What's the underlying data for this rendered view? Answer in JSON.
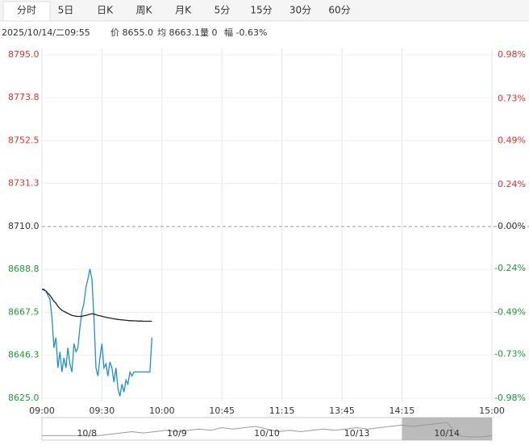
{
  "tabs": [
    "分时",
    "5日",
    "日K",
    "周K",
    "月K",
    "5分",
    "15分",
    "30分",
    "60分"
  ],
  "info": [
    "2025/10/14/二09:55",
    "价 8655.0",
    "均 8663.1",
    "量 0",
    "幅 -0.63%"
  ],
  "chart_data": {
    "type": "line",
    "x": [
      0,
      1,
      2,
      3,
      4,
      5,
      6,
      7,
      8,
      9,
      10,
      11,
      12,
      13,
      14,
      15,
      16,
      17,
      18,
      19,
      20,
      21,
      22,
      23,
      24,
      25,
      26,
      27,
      28,
      29,
      30,
      31,
      32,
      33,
      34,
      35,
      36,
      37,
      38,
      39,
      40,
      41,
      42,
      43,
      44,
      45,
      46,
      47,
      48,
      49,
      50,
      51,
      52,
      53,
      54,
      55
    ],
    "xlim": [
      0,
      225
    ],
    "xticks": [
      {
        "value": 0,
        "label": "09:00"
      },
      {
        "value": 30,
        "label": "09:30"
      },
      {
        "value": 60,
        "label": "10:00"
      },
      {
        "value": 90,
        "label": "10:45"
      },
      {
        "value": 120,
        "label": "11:15"
      },
      {
        "value": 150,
        "label": "13:45"
      },
      {
        "value": 180,
        "label": "14:15"
      },
      {
        "value": 225,
        "label": "15:00"
      }
    ],
    "ylim": [
      8625,
      8795
    ],
    "yticks": [
      {
        "value": 8795,
        "label": "8795.0"
      },
      8773.8,
      8752.5,
      8731.3,
      {
        "value": 8710,
        "label": "8710.0"
      },
      8688.8,
      8667.5,
      8646.3,
      {
        "value": 8625,
        "label": "8625.0"
      }
    ],
    "y2lim": [
      -0.98,
      0.98
    ],
    "y2ticks": [
      {
        "value": 0.98,
        "label": "0.98%"
      },
      {
        "value": 0.73,
        "label": "0.73%"
      },
      {
        "value": 0.49,
        "label": "0.49%"
      },
      {
        "value": 0.24,
        "label": "0.24%"
      },
      {
        "value": 0,
        "label": "0.00%"
      },
      {
        "value": -0.24,
        "label": "-0.24%"
      },
      {
        "value": -0.49,
        "label": "-0.49%"
      },
      {
        "value": -0.73,
        "label": "-0.73%"
      },
      {
        "value": -0.98,
        "label": "-0.98%"
      }
    ],
    "baseline": 8710,
    "up_color": "#e03030",
    "down_color": "#1a9a3a",
    "series": [
      {
        "name": "价",
        "color": "#1f8fd0",
        "values": [
          8679,
          8679,
          8678,
          8676,
          8674,
          8665,
          8650,
          8655,
          8640,
          8648,
          8638,
          8645,
          8640,
          8650,
          8642,
          8638,
          8652,
          8648,
          8650,
          8660,
          8668,
          8672,
          8680,
          8684,
          8689,
          8684,
          8665,
          8640,
          8636,
          8645,
          8652,
          8640,
          8642,
          8636,
          8643,
          8640,
          8633,
          8640,
          8630,
          8626,
          8632,
          8628,
          8634,
          8632,
          8638,
          8636,
          8638,
          8638,
          8638,
          8638,
          8638,
          8638,
          8638,
          8638,
          8638,
          8655
        ]
      },
      {
        "name": "均",
        "color": "#222222",
        "values": [
          8679,
          8678.6,
          8678,
          8677,
          8676,
          8674.5,
          8673,
          8672,
          8670.5,
          8669.5,
          8668.5,
          8668,
          8667.5,
          8667,
          8666.5,
          8666,
          8665.8,
          8665.6,
          8665.5,
          8665.5,
          8665.6,
          8665.8,
          8666,
          8666.3,
          8666.6,
          8666.8,
          8666.7,
          8666.4,
          8666,
          8665.8,
          8665.6,
          8665.3,
          8665.1,
          8664.9,
          8664.7,
          8664.5,
          8664.3,
          8664.2,
          8664,
          8663.9,
          8663.8,
          8663.7,
          8663.6,
          8663.5,
          8663.4,
          8663.4,
          8663.3,
          8663.3,
          8663.2,
          8663.2,
          8663.2,
          8663.1,
          8663.1,
          8663.1,
          8663.1,
          8663.1
        ]
      }
    ],
    "navigator": {
      "labels": [
        "10/8",
        "10/9",
        "10/10",
        "10/13",
        "10/14"
      ],
      "values": [
        3,
        3,
        3,
        3,
        3,
        3,
        4,
        5,
        6,
        5,
        6,
        7,
        6,
        7,
        8,
        7,
        9,
        8,
        9,
        10,
        8,
        6,
        7,
        6,
        7,
        8,
        7,
        8,
        9,
        8,
        9,
        10,
        11,
        10,
        11,
        12,
        13,
        3,
        2,
        2,
        3
      ]
    }
  }
}
